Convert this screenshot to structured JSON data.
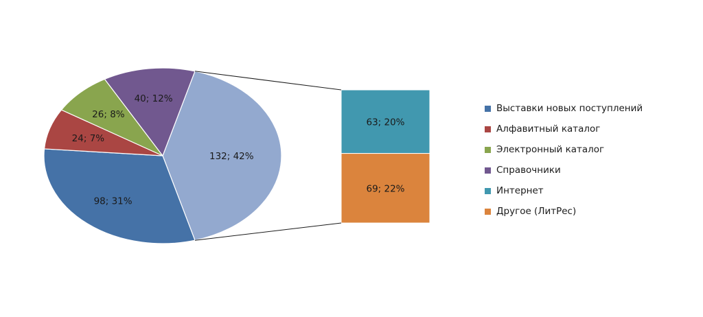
{
  "chart_data": {
    "type": "pie",
    "subtype": "pie-of-pie (pie with stacked bar breakout)",
    "title": "",
    "slices": [
      {
        "name": "Выставки новых поступлений",
        "value": 98,
        "percent": 31,
        "label": "98; 31%",
        "color": "#4572A7",
        "group": "main"
      },
      {
        "name": "Алфавитный каталог",
        "value": 24,
        "percent": 7,
        "label": "24; 7%",
        "color": "#AA4643",
        "group": "main"
      },
      {
        "name": "Электронный каталог",
        "value": 26,
        "percent": 8,
        "label": "26; 8%",
        "color": "#89A54E",
        "group": "main"
      },
      {
        "name": "Справочники",
        "value": 40,
        "percent": 12,
        "label": "40; 12%",
        "color": "#71588F",
        "group": "main"
      },
      {
        "name": "Интернет",
        "value": 63,
        "percent": 20,
        "label": "63; 20%",
        "color": "#4198AF",
        "group": "secondary"
      },
      {
        "name": "Другое (ЛитРес)",
        "value": 69,
        "percent": 22,
        "label": "69; 22%",
        "color": "#DB843D",
        "group": "secondary"
      }
    ],
    "other_slice": {
      "value": 132,
      "percent": 42,
      "label": "132; 42%",
      "color": "#93A9CF"
    },
    "legend": {
      "position": "right"
    }
  }
}
